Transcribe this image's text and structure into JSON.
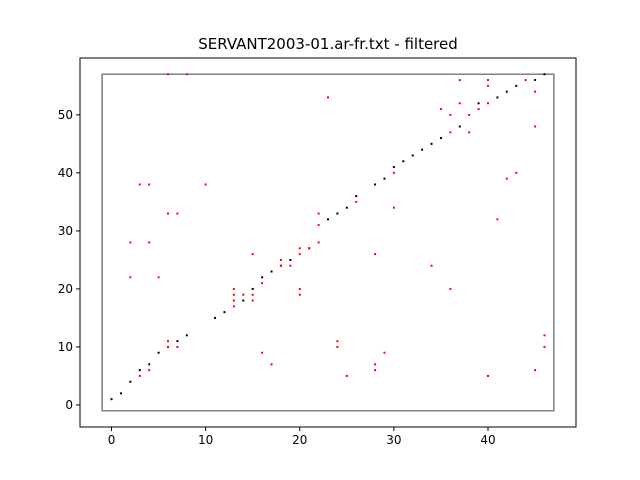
{
  "chart_data": {
    "type": "scatter",
    "title": "SERVANT2003-01.ar-fr.txt - filtered",
    "xlabel": "",
    "ylabel": "",
    "xlim": [
      -3.35,
      49.35
    ],
    "ylim": [
      -3.8,
      59.8
    ],
    "xticks": [
      0,
      10,
      20,
      30,
      40
    ],
    "yticks": [
      0,
      10,
      20,
      30,
      40,
      50
    ],
    "grid": false,
    "legend": "none",
    "region": {
      "x0": -1,
      "y0": -1,
      "x1": 47,
      "y1": 57,
      "color": "#808080"
    },
    "series": [
      {
        "color": "#000000",
        "points": [
          [
            0,
            1
          ],
          [
            1,
            2
          ],
          [
            2,
            4
          ],
          [
            3,
            6
          ],
          [
            4,
            7
          ],
          [
            5,
            9
          ],
          [
            7,
            11
          ],
          [
            8,
            12
          ],
          [
            11,
            15
          ],
          [
            12,
            16
          ],
          [
            14,
            18
          ],
          [
            15,
            20
          ],
          [
            16,
            22
          ],
          [
            17,
            23
          ],
          [
            18,
            24
          ],
          [
            19,
            25
          ],
          [
            21,
            27
          ],
          [
            23,
            32
          ],
          [
            24,
            33
          ],
          [
            25,
            34
          ],
          [
            26,
            36
          ],
          [
            28,
            38
          ],
          [
            29,
            39
          ],
          [
            30,
            41
          ],
          [
            31,
            42
          ],
          [
            32,
            43
          ],
          [
            33,
            44
          ],
          [
            34,
            45
          ],
          [
            35,
            46
          ],
          [
            37,
            48
          ],
          [
            39,
            52
          ],
          [
            41,
            53
          ],
          [
            42,
            54
          ],
          [
            43,
            55
          ],
          [
            45,
            56
          ],
          [
            46,
            57
          ]
        ]
      },
      {
        "color": "#ff0000",
        "points": [
          [
            3,
            5
          ],
          [
            4,
            6
          ],
          [
            6,
            10
          ],
          [
            6,
            11
          ],
          [
            7,
            10
          ],
          [
            2,
            22
          ],
          [
            2,
            28
          ],
          [
            3,
            38
          ],
          [
            4,
            28
          ],
          [
            4,
            38
          ],
          [
            5,
            22
          ],
          [
            6,
            33
          ],
          [
            7,
            33
          ],
          [
            6,
            57
          ],
          [
            8,
            57
          ],
          [
            10,
            38
          ],
          [
            13,
            17
          ],
          [
            13,
            18
          ],
          [
            13,
            19
          ],
          [
            13,
            20
          ],
          [
            14,
            19
          ],
          [
            15,
            18
          ],
          [
            15,
            19
          ],
          [
            15,
            26
          ],
          [
            16,
            21
          ],
          [
            16,
            9
          ],
          [
            17,
            7
          ],
          [
            18,
            24
          ],
          [
            18,
            25
          ],
          [
            19,
            24
          ],
          [
            20,
            19
          ],
          [
            20,
            20
          ],
          [
            20,
            26
          ],
          [
            20,
            27
          ],
          [
            21,
            27
          ],
          [
            22,
            28
          ],
          [
            22,
            31
          ],
          [
            22,
            33
          ],
          [
            23,
            53
          ],
          [
            24,
            10
          ],
          [
            24,
            11
          ],
          [
            25,
            5
          ],
          [
            26,
            35
          ],
          [
            28,
            26
          ],
          [
            28,
            6
          ],
          [
            28,
            7
          ],
          [
            29,
            9
          ],
          [
            30,
            34
          ],
          [
            30,
            40
          ],
          [
            34,
            24
          ],
          [
            35,
            51
          ],
          [
            36,
            20
          ],
          [
            36,
            47
          ],
          [
            36,
            50
          ],
          [
            37,
            52
          ],
          [
            37,
            56
          ],
          [
            38,
            47
          ],
          [
            38,
            50
          ],
          [
            39,
            51
          ],
          [
            40,
            52
          ],
          [
            40,
            55
          ],
          [
            40,
            56
          ],
          [
            40,
            5
          ],
          [
            41,
            32
          ],
          [
            42,
            39
          ],
          [
            43,
            40
          ],
          [
            44,
            56
          ],
          [
            45,
            48
          ],
          [
            45,
            54
          ],
          [
            45,
            6
          ],
          [
            46,
            10
          ],
          [
            46,
            12
          ]
        ]
      }
    ]
  }
}
